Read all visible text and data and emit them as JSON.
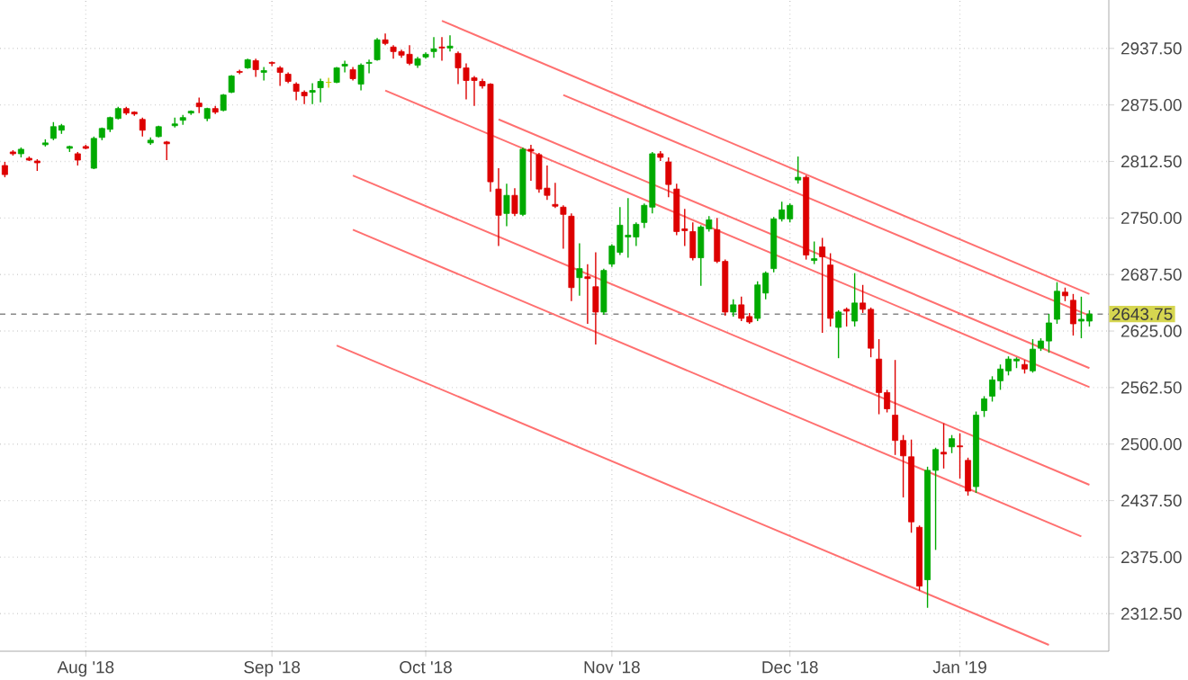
{
  "chart_data": {
    "type": "candlestick",
    "grid": true,
    "categories": [
      null,
      null,
      null,
      null,
      null,
      null,
      null,
      null,
      null,
      null,
      "Aug '18",
      null,
      null,
      null,
      null,
      null,
      null,
      null,
      null,
      null,
      null,
      null,
      null,
      null,
      null,
      null,
      null,
      null,
      null,
      null,
      null,
      null,
      null,
      "Sep '18",
      null,
      null,
      null,
      null,
      null,
      null,
      null,
      null,
      null,
      null,
      null,
      null,
      null,
      null,
      null,
      null,
      null,
      null,
      "Oct '18",
      null,
      null,
      null,
      null,
      null,
      null,
      null,
      null,
      null,
      null,
      null,
      null,
      null,
      null,
      null,
      null,
      null,
      null,
      null,
      null,
      null,
      null,
      "Nov '18",
      null,
      null,
      null,
      null,
      null,
      null,
      null,
      null,
      null,
      null,
      null,
      null,
      null,
      null,
      null,
      null,
      null,
      null,
      null,
      null,
      null,
      "Dec '18",
      null,
      null,
      null,
      null,
      null,
      null,
      null,
      null,
      null,
      null,
      null,
      null,
      null,
      null,
      null,
      null,
      null,
      null,
      null,
      null,
      "Jan '19",
      null,
      null,
      null,
      null,
      null,
      null,
      null,
      null,
      null,
      null,
      null,
      null,
      null,
      null,
      null,
      null
    ],
    "ohlc": [
      [
        2808,
        2812,
        2795,
        2798
      ],
      [
        2823,
        2825,
        2819,
        2821
      ],
      [
        2821,
        2828,
        2817,
        2826
      ],
      [
        2816,
        2818,
        2813,
        2814
      ],
      [
        2813,
        2815,
        2802,
        2811
      ],
      [
        2831,
        2837,
        2829,
        2833
      ],
      [
        2838,
        2856,
        2836,
        2851
      ],
      [
        2847,
        2854,
        2843,
        2852
      ],
      [
        2827,
        2830,
        2823,
        2829
      ],
      [
        2821,
        2823,
        2808,
        2814
      ],
      [
        2829,
        2831,
        2826,
        2827
      ],
      [
        2805,
        2840,
        2804,
        2838
      ],
      [
        2839,
        2850,
        2836,
        2849
      ],
      [
        2848,
        2862,
        2845,
        2861
      ],
      [
        2860,
        2873,
        2859,
        2871
      ],
      [
        2871,
        2873,
        2864,
        2866
      ],
      [
        2867,
        2868,
        2863,
        2865
      ],
      [
        2859,
        2861,
        2840,
        2847
      ],
      [
        2833,
        2839,
        2831,
        2836
      ],
      [
        2840,
        2852,
        2839,
        2851
      ],
      [
        2834,
        2835,
        2814,
        2832
      ],
      [
        2852,
        2861,
        2850,
        2854
      ],
      [
        2858,
        2864,
        2853,
        2861
      ],
      [
        2866,
        2869,
        2864,
        2868
      ],
      [
        2877,
        2883,
        2866,
        2873
      ],
      [
        2860,
        2872,
        2857,
        2871
      ],
      [
        2871,
        2874,
        2865,
        2867
      ],
      [
        2869,
        2887,
        2868,
        2886
      ],
      [
        2889,
        2908,
        2888,
        2907
      ],
      [
        2912,
        2914,
        2909,
        2911
      ],
      [
        2916,
        2926,
        2915,
        2925
      ],
      [
        2924,
        2926,
        2906,
        2914
      ],
      [
        2911,
        2917,
        2902,
        2913
      ],
      [
        2922,
        2923,
        2918,
        2921
      ],
      [
        2916,
        2918,
        2896,
        2911
      ],
      [
        2909,
        2911,
        2899,
        2901
      ],
      [
        2898,
        2900,
        2880,
        2890
      ],
      [
        2889,
        2891,
        2876,
        2885
      ],
      [
        2889,
        2899,
        2876,
        2891
      ],
      [
        2894,
        2904,
        2878,
        2901
      ],
      [
        2900,
        2905,
        2894,
        2900
      ],
      [
        2900,
        2917,
        2899,
        2916
      ],
      [
        2918,
        2924,
        2911,
        2920
      ],
      [
        2914,
        2917,
        2902,
        2904
      ],
      [
        2898,
        2921,
        2891,
        2919
      ],
      [
        2921,
        2925,
        2910,
        2922
      ],
      [
        2925,
        2949,
        2924,
        2947
      ],
      [
        2947,
        2954,
        2941,
        2943
      ],
      [
        2939,
        2941,
        2926,
        2934
      ],
      [
        2934,
        2936,
        2927,
        2930
      ],
      [
        2931,
        2941,
        2919,
        2921
      ],
      [
        2919,
        2928,
        2916,
        2926
      ],
      [
        2928,
        2933,
        2926,
        2931
      ],
      [
        2934,
        2950,
        2927,
        2937
      ],
      [
        2939,
        2950,
        2924,
        2938
      ],
      [
        2938,
        2952,
        2934,
        2940
      ],
      [
        2932,
        2934,
        2898,
        2916
      ],
      [
        2916,
        2921,
        2881,
        2902
      ],
      [
        2905,
        2907,
        2874,
        2902
      ],
      [
        2901,
        2904,
        2893,
        2896
      ],
      [
        2898,
        2899,
        2779,
        2790
      ],
      [
        2782,
        2805,
        2719,
        2753
      ],
      [
        2755,
        2788,
        2741,
        2775
      ],
      [
        2775,
        2783,
        2752,
        2755
      ],
      [
        2754,
        2828,
        2752,
        2826
      ],
      [
        2826,
        2831,
        2791,
        2824
      ],
      [
        2820,
        2822,
        2778,
        2782
      ],
      [
        2783,
        2808,
        2770,
        2775
      ],
      [
        2765,
        2789,
        2761,
        2763
      ],
      [
        2762,
        2764,
        2716,
        2754
      ],
      [
        2752,
        2755,
        2658,
        2673
      ],
      [
        2684,
        2722,
        2664,
        2694
      ],
      [
        2685,
        2699,
        2633,
        2683
      ],
      [
        2674,
        2712,
        2610,
        2646
      ],
      [
        2646,
        2694,
        2643,
        2692
      ],
      [
        2699,
        2721,
        2696,
        2719
      ],
      [
        2712,
        2762,
        2709,
        2742
      ],
      [
        2729,
        2772,
        2706,
        2731
      ],
      [
        2729,
        2745,
        2719,
        2743
      ],
      [
        2745,
        2766,
        2739,
        2764
      ],
      [
        2762,
        2823,
        2755,
        2821
      ],
      [
        2821,
        2824,
        2813,
        2817
      ],
      [
        2812,
        2817,
        2773,
        2787
      ],
      [
        2782,
        2788,
        2731,
        2735
      ],
      [
        2738,
        2760,
        2719,
        2736
      ],
      [
        2735,
        2745,
        2703,
        2706
      ],
      [
        2706,
        2742,
        2675,
        2740
      ],
      [
        2738,
        2752,
        2735,
        2748
      ],
      [
        2737,
        2750,
        2700,
        2702
      ],
      [
        2702,
        2704,
        2642,
        2646
      ],
      [
        2646,
        2660,
        2641,
        2654
      ],
      [
        2654,
        2663,
        2636,
        2639
      ],
      [
        2641,
        2645,
        2633,
        2635
      ],
      [
        2639,
        2680,
        2636,
        2676
      ],
      [
        2667,
        2691,
        2660,
        2689
      ],
      [
        2694,
        2751,
        2690,
        2749
      ],
      [
        2749,
        2768,
        2746,
        2759
      ],
      [
        2749,
        2766,
        2745,
        2764
      ],
      [
        2792,
        2818,
        2788,
        2795
      ],
      [
        2795,
        2797,
        2704,
        2709
      ],
      [
        2703,
        2724,
        2699,
        2705
      ],
      [
        2718,
        2728,
        2623,
        2707
      ],
      [
        2698,
        2711,
        2630,
        2639
      ],
      [
        2629,
        2648,
        2595,
        2646
      ],
      [
        2649,
        2651,
        2630,
        2647
      ],
      [
        2636,
        2689,
        2630,
        2656
      ],
      [
        2656,
        2676,
        2645,
        2649
      ],
      [
        2649,
        2651,
        2596,
        2606
      ],
      [
        2594,
        2616,
        2533,
        2557
      ],
      [
        2557,
        2560,
        2535,
        2539
      ],
      [
        2532,
        2593,
        2488,
        2504
      ],
      [
        2504,
        2510,
        2441,
        2487
      ],
      [
        2486,
        2505,
        2402,
        2414
      ],
      [
        2408,
        2410,
        2338,
        2343
      ],
      [
        2350,
        2475,
        2319,
        2471
      ],
      [
        2471,
        2496,
        2383,
        2494
      ],
      [
        2491,
        2523,
        2473,
        2489
      ],
      [
        2497,
        2510,
        2490,
        2506
      ],
      [
        2498,
        2512,
        2462,
        2497
      ],
      [
        2482,
        2485,
        2443,
        2448
      ],
      [
        2453,
        2536,
        2446,
        2532
      ],
      [
        2537,
        2553,
        2530,
        2550
      ],
      [
        2553,
        2575,
        2547,
        2571
      ],
      [
        2570,
        2588,
        2560,
        2583
      ],
      [
        2581,
        2597,
        2576,
        2594
      ],
      [
        2592,
        2596,
        2584,
        2594
      ],
      [
        2588,
        2593,
        2578,
        2583
      ],
      [
        2581,
        2616,
        2579,
        2605
      ],
      [
        2606,
        2617,
        2603,
        2614
      ],
      [
        2614,
        2644,
        2601,
        2634
      ],
      [
        2638,
        2679,
        2633,
        2669
      ],
      [
        2668,
        2673,
        2658,
        2664
      ],
      [
        2659,
        2666,
        2620,
        2633
      ],
      [
        2636,
        2663,
        2617,
        2638
      ],
      [
        2636,
        2648,
        2630,
        2643.75
      ]
    ],
    "colors": [
      "#dd0000",
      "#dd0000",
      "#00aa00",
      "#dd0000",
      "#dd0000",
      "#00aa00",
      "#00aa00",
      "#00aa00",
      "#00aa00",
      "#dd0000",
      "#dd0000",
      "#00aa00",
      "#00aa00",
      "#00aa00",
      "#00aa00",
      "#dd0000",
      "#dd0000",
      "#dd0000",
      "#00aa00",
      "#00aa00",
      "#dd0000",
      "#00aa00",
      "#00aa00",
      "#00aa00",
      "#dd0000",
      "#00aa00",
      "#dd0000",
      "#00aa00",
      "#00aa00",
      "#dd0000",
      "#00aa00",
      "#dd0000",
      "#00aa00",
      "#dd0000",
      "#dd0000",
      "#dd0000",
      "#dd0000",
      "#dd0000",
      "#00aa00",
      "#00aa00",
      "#cccc00",
      "#00aa00",
      "#00aa00",
      "#dd0000",
      "#00aa00",
      "#00aa00",
      "#00aa00",
      "#dd0000",
      "#dd0000",
      "#dd0000",
      "#dd0000",
      "#00aa00",
      "#00aa00",
      "#00aa00",
      "#dd0000",
      "#00aa00",
      "#dd0000",
      "#dd0000",
      "#dd0000",
      "#dd0000",
      "#dd0000",
      "#dd0000",
      "#00aa00",
      "#dd0000",
      "#00aa00",
      "#dd0000",
      "#dd0000",
      "#dd0000",
      "#dd0000",
      "#dd0000",
      "#dd0000",
      "#00aa00",
      "#dd0000",
      "#dd0000",
      "#00aa00",
      "#00aa00",
      "#00aa00",
      "#00aa00",
      "#00aa00",
      "#00aa00",
      "#00aa00",
      "#dd0000",
      "#dd0000",
      "#dd0000",
      "#dd0000",
      "#dd0000",
      "#00aa00",
      "#00aa00",
      "#dd0000",
      "#dd0000",
      "#00aa00",
      "#dd0000",
      "#dd0000",
      "#00aa00",
      "#00aa00",
      "#00aa00",
      "#00aa00",
      "#00aa00",
      "#00aa00",
      "#dd0000",
      "#00aa00",
      "#dd0000",
      "#dd0000",
      "#00aa00",
      "#dd0000",
      "#00aa00",
      "#dd0000",
      "#dd0000",
      "#dd0000",
      "#dd0000",
      "#dd0000",
      "#dd0000",
      "#dd0000",
      "#dd0000",
      "#00aa00",
      "#00aa00",
      "#dd0000",
      "#00aa00",
      "#dd0000",
      "#dd0000",
      "#00aa00",
      "#00aa00",
      "#00aa00",
      "#00aa00",
      "#00aa00",
      "#00aa00",
      "#dd0000",
      "#00aa00",
      "#00aa00",
      "#00aa00",
      "#00aa00",
      "#dd0000",
      "#dd0000",
      "#00aa00",
      "#00aa00"
    ],
    "series": [
      {
        "type": "line",
        "color": "#ff7070",
        "values": [
          null,
          null,
          null,
          null,
          null,
          null,
          null,
          null,
          null,
          null,
          null,
          null,
          null,
          null,
          null,
          null,
          null,
          null,
          null,
          null,
          null,
          null,
          null,
          null,
          null,
          null,
          null,
          null,
          null,
          null,
          null,
          null,
          null,
          null,
          null,
          null,
          null,
          null,
          null,
          null,
          null,
          null,
          null,
          null,
          null,
          null,
          null,
          null,
          null,
          null,
          null,
          null,
          null,
          null,
          2968,
          null,
          null,
          null,
          null,
          null,
          null,
          null,
          null,
          null,
          null,
          null,
          null,
          null,
          null,
          null,
          null,
          null,
          null,
          null,
          null,
          null,
          null,
          null,
          null,
          null,
          null,
          null,
          null,
          null,
          null,
          null,
          null,
          null,
          null,
          null,
          null,
          null,
          null,
          null,
          null,
          null,
          null,
          null,
          null,
          null,
          null,
          null,
          null,
          null,
          null,
          null,
          null,
          null,
          null,
          null,
          null,
          null,
          null,
          null,
          null,
          null,
          null,
          null,
          null,
          null,
          null,
          null,
          null,
          null,
          null,
          null,
          null,
          null,
          null,
          null,
          null,
          null,
          null,
          null,
          2666
        ]
      },
      {
        "type": "line",
        "color": "#ff7070",
        "values": [
          null,
          null,
          null,
          null,
          null,
          null,
          null,
          null,
          null,
          null,
          null,
          null,
          null,
          null,
          null,
          null,
          null,
          null,
          null,
          null,
          null,
          null,
          null,
          null,
          null,
          null,
          null,
          null,
          null,
          null,
          null,
          null,
          null,
          null,
          null,
          null,
          null,
          null,
          null,
          null,
          null,
          null,
          null,
          null,
          null,
          null,
          null,
          null,
          null,
          null,
          null,
          null,
          null,
          null,
          null,
          null,
          null,
          null,
          null,
          null,
          null,
          null,
          null,
          null,
          null,
          null,
          null,
          null,
          null,
          2886,
          null,
          null,
          null,
          null,
          null,
          null,
          null,
          null,
          null,
          null,
          null,
          null,
          null,
          null,
          null,
          null,
          null,
          null,
          null,
          null,
          null,
          null,
          null,
          null,
          null,
          null,
          null,
          null,
          null,
          null,
          null,
          null,
          null,
          null,
          null,
          null,
          null,
          null,
          null,
          null,
          null,
          null,
          null,
          null,
          null,
          null,
          null,
          null,
          null,
          null,
          null,
          null,
          null,
          null,
          null,
          null,
          null,
          null,
          null,
          null,
          null,
          null,
          null,
          null,
          2642
        ]
      },
      {
        "type": "line",
        "color": "#ff7070",
        "values": [
          null,
          null,
          null,
          null,
          null,
          null,
          null,
          null,
          null,
          null,
          null,
          null,
          null,
          null,
          null,
          null,
          null,
          null,
          null,
          null,
          null,
          null,
          null,
          null,
          null,
          null,
          null,
          null,
          null,
          null,
          null,
          null,
          null,
          null,
          null,
          null,
          null,
          null,
          null,
          null,
          null,
          null,
          null,
          null,
          null,
          null,
          null,
          null,
          null,
          null,
          null,
          null,
          null,
          null,
          null,
          null,
          null,
          null,
          null,
          null,
          null,
          2859,
          null,
          null,
          null,
          null,
          null,
          null,
          null,
          null,
          null,
          null,
          null,
          null,
          null,
          null,
          null,
          null,
          null,
          null,
          null,
          null,
          null,
          null,
          null,
          null,
          null,
          null,
          null,
          null,
          null,
          null,
          null,
          null,
          null,
          null,
          null,
          null,
          null,
          null,
          null,
          null,
          null,
          null,
          null,
          null,
          null,
          null,
          null,
          null,
          null,
          null,
          null,
          null,
          null,
          null,
          null,
          null,
          null,
          null,
          null,
          null,
          null,
          null,
          null,
          null,
          null,
          null,
          null,
          null,
          null,
          null,
          null,
          null,
          2584
        ]
      },
      {
        "type": "line",
        "color": "#ff7070",
        "values": [
          null,
          null,
          null,
          null,
          null,
          null,
          null,
          null,
          null,
          null,
          null,
          null,
          null,
          null,
          null,
          null,
          null,
          null,
          null,
          null,
          null,
          null,
          null,
          null,
          null,
          null,
          null,
          null,
          null,
          null,
          null,
          null,
          null,
          null,
          null,
          null,
          null,
          null,
          null,
          null,
          null,
          null,
          null,
          null,
          null,
          null,
          null,
          2891,
          null,
          null,
          null,
          null,
          null,
          null,
          null,
          null,
          null,
          null,
          null,
          null,
          null,
          null,
          null,
          null,
          null,
          null,
          null,
          null,
          null,
          null,
          null,
          null,
          null,
          null,
          null,
          null,
          null,
          null,
          null,
          null,
          null,
          null,
          null,
          null,
          null,
          null,
          null,
          null,
          null,
          null,
          null,
          null,
          null,
          null,
          null,
          null,
          null,
          null,
          null,
          null,
          null,
          null,
          null,
          null,
          null,
          null,
          null,
          null,
          null,
          null,
          null,
          null,
          null,
          null,
          null,
          null,
          null,
          null,
          null,
          null,
          null,
          null,
          null,
          null,
          null,
          null,
          null,
          null,
          null,
          null,
          null,
          null,
          null,
          null,
          2563
        ]
      },
      {
        "type": "line",
        "color": "#ff7070",
        "values": [
          null,
          null,
          null,
          null,
          null,
          null,
          null,
          null,
          null,
          null,
          null,
          null,
          null,
          null,
          null,
          null,
          null,
          null,
          null,
          null,
          null,
          null,
          null,
          null,
          null,
          null,
          null,
          null,
          null,
          null,
          null,
          null,
          null,
          null,
          null,
          null,
          null,
          null,
          null,
          null,
          null,
          null,
          null,
          2797,
          null,
          null,
          null,
          null,
          null,
          null,
          null,
          null,
          null,
          null,
          null,
          null,
          null,
          null,
          null,
          null,
          null,
          null,
          null,
          null,
          null,
          null,
          null,
          null,
          null,
          null,
          null,
          null,
          null,
          null,
          null,
          null,
          null,
          null,
          null,
          null,
          null,
          null,
          null,
          null,
          null,
          null,
          null,
          null,
          null,
          null,
          null,
          null,
          null,
          null,
          null,
          null,
          null,
          null,
          null,
          null,
          null,
          null,
          null,
          null,
          null,
          null,
          null,
          null,
          null,
          null,
          null,
          null,
          null,
          null,
          null,
          null,
          null,
          null,
          null,
          null,
          null,
          null,
          null,
          null,
          null,
          null,
          null,
          null,
          null,
          null,
          null,
          null,
          null,
          null,
          2455
        ]
      },
      {
        "type": "line",
        "color": "#ff7070",
        "values": [
          null,
          null,
          null,
          null,
          null,
          null,
          null,
          null,
          null,
          null,
          null,
          null,
          null,
          null,
          null,
          null,
          null,
          null,
          null,
          null,
          null,
          null,
          null,
          null,
          null,
          null,
          null,
          null,
          null,
          null,
          null,
          null,
          null,
          null,
          null,
          null,
          null,
          null,
          null,
          null,
          null,
          null,
          null,
          2737,
          null,
          null,
          null,
          null,
          null,
          null,
          null,
          null,
          null,
          null,
          null,
          null,
          null,
          null,
          null,
          null,
          null,
          null,
          null,
          null,
          null,
          null,
          null,
          null,
          null,
          null,
          null,
          null,
          null,
          null,
          null,
          null,
          null,
          null,
          null,
          null,
          null,
          null,
          null,
          null,
          null,
          null,
          null,
          null,
          null,
          null,
          null,
          null,
          null,
          null,
          null,
          null,
          null,
          null,
          null,
          null,
          null,
          null,
          null,
          null,
          null,
          null,
          null,
          null,
          null,
          null,
          null,
          null,
          null,
          null,
          null,
          null,
          null,
          null,
          null,
          null,
          null,
          null,
          null,
          null,
          null,
          null,
          null,
          null,
          null,
          null,
          null,
          null,
          null,
          2398,
          null
        ]
      },
      {
        "type": "line",
        "color": "#ff7070",
        "values": [
          null,
          null,
          null,
          null,
          null,
          null,
          null,
          null,
          null,
          null,
          null,
          null,
          null,
          null,
          null,
          null,
          null,
          null,
          null,
          null,
          null,
          null,
          null,
          null,
          null,
          null,
          null,
          null,
          null,
          null,
          null,
          null,
          null,
          null,
          null,
          null,
          null,
          null,
          null,
          null,
          null,
          2609,
          null,
          null,
          null,
          null,
          null,
          null,
          null,
          null,
          null,
          null,
          null,
          null,
          null,
          null,
          null,
          null,
          null,
          null,
          null,
          null,
          null,
          null,
          null,
          null,
          null,
          null,
          null,
          null,
          null,
          null,
          null,
          null,
          null,
          null,
          null,
          null,
          null,
          null,
          null,
          null,
          null,
          null,
          null,
          null,
          null,
          null,
          null,
          null,
          null,
          null,
          null,
          null,
          null,
          null,
          null,
          null,
          null,
          null,
          null,
          null,
          null,
          null,
          null,
          null,
          null,
          null,
          null,
          null,
          null,
          null,
          null,
          null,
          null,
          null,
          null,
          null,
          null,
          null,
          null,
          null,
          null,
          null,
          null,
          null,
          null,
          null,
          null,
          2278,
          null,
          null,
          null,
          null,
          null
        ]
      }
    ],
    "ylim": [
      2271,
      2991
    ],
    "yticks": [
      {
        "value": 2312.5,
        "label": "2312.50"
      },
      {
        "value": 2375,
        "label": "2375.00"
      },
      {
        "value": 2437.5,
        "label": "2437.50"
      },
      {
        "value": 2500,
        "label": "2500.00"
      },
      {
        "value": 2562.5,
        "label": "2562.50"
      },
      {
        "value": 2625,
        "label": "2625.00"
      },
      {
        "value": 2687.5,
        "label": "2687.50"
      },
      {
        "value": 2750,
        "label": "2750.00"
      },
      {
        "value": 2812.5,
        "label": "2812.50"
      },
      {
        "value": 2875,
        "label": "2875.00"
      },
      {
        "value": 2937.5,
        "label": "2937.50"
      }
    ],
    "ref_lines": [
      {
        "axis": "y",
        "value": 2643.75,
        "label": "2643.75",
        "color": "#888888",
        "line_style": "dashed"
      }
    ]
  }
}
